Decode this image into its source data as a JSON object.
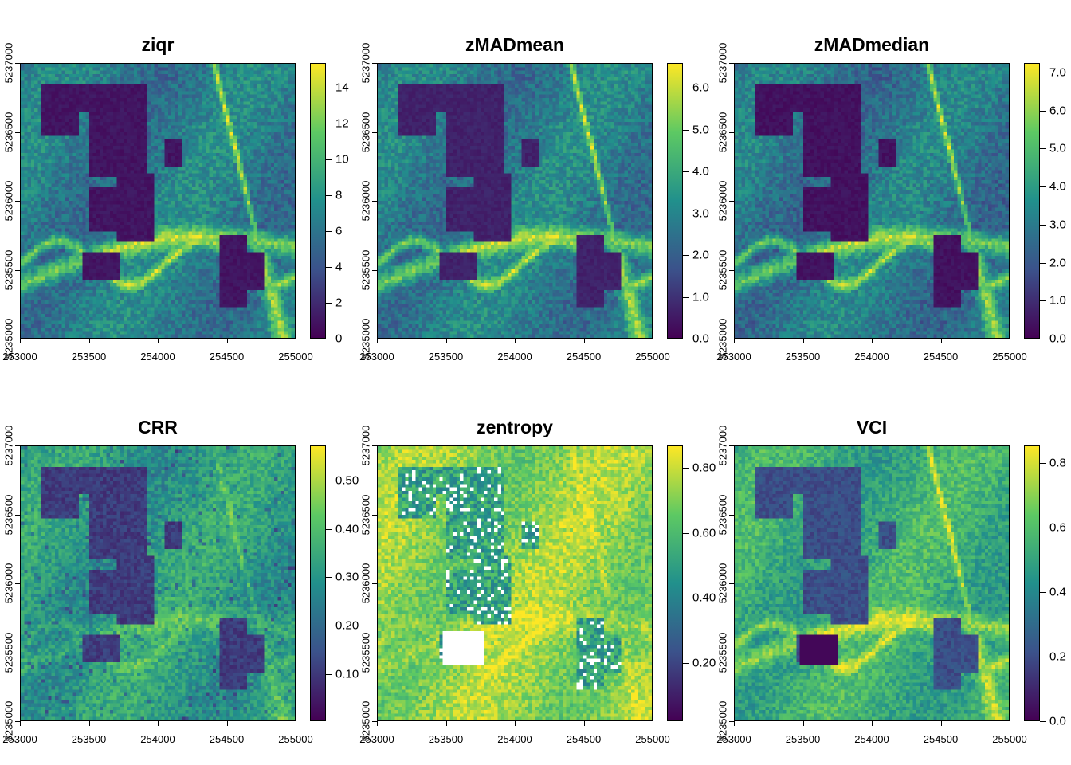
{
  "chart_data": {
    "type": "heatmap",
    "layout": "2x3 grid of raster maps with viridis color legends",
    "x_ticks": [
      "253000",
      "253500",
      "254000",
      "254500",
      "255000"
    ],
    "x_range": [
      253000,
      255000
    ],
    "y_ticks": [
      "5235000",
      "5235500",
      "5236000",
      "5236500",
      "5237000"
    ],
    "y_range": [
      5235000,
      5237000
    ],
    "colormap": [
      "#440154",
      "#3b528b",
      "#21908c",
      "#5dc963",
      "#fde725"
    ],
    "na_color": "#ffffff",
    "panels": [
      {
        "title": "ziqr",
        "range": [
          0,
          15.4
        ],
        "ticks": [
          0,
          2,
          4,
          6,
          8,
          10,
          12,
          14
        ],
        "tick_labels": [
          "0",
          "2",
          "4",
          "6",
          "8",
          "10",
          "12",
          "14"
        ],
        "base": 0.42,
        "dark": 0.03,
        "mode": "normal"
      },
      {
        "title": "zMADmean",
        "range": [
          0,
          6.6
        ],
        "ticks": [
          0,
          1,
          2,
          3,
          4,
          5,
          6
        ],
        "tick_labels": [
          "0.0",
          "1.0",
          "2.0",
          "3.0",
          "4.0",
          "5.0",
          "6.0"
        ],
        "base": 0.42,
        "dark": 0.07,
        "mode": "normal"
      },
      {
        "title": "zMADmedian",
        "range": [
          0,
          7.25
        ],
        "ticks": [
          0,
          1,
          2,
          3,
          4,
          5,
          6,
          7
        ],
        "tick_labels": [
          "0.0",
          "1.0",
          "2.0",
          "3.0",
          "4.0",
          "5.0",
          "6.0",
          "7.0"
        ],
        "base": 0.4,
        "dark": 0.02,
        "mode": "normal"
      },
      {
        "title": "CRR",
        "range": [
          0.003,
          0.572
        ],
        "ticks": [
          0.1,
          0.2,
          0.3,
          0.4,
          0.5
        ],
        "tick_labels": [
          "0.10",
          "0.20",
          "0.30",
          "0.40",
          "0.50"
        ],
        "base": 0.55,
        "dark": 0.12,
        "mode": "crr"
      },
      {
        "title": "zentropy",
        "range": [
          0.02,
          0.87
        ],
        "ticks": [
          0.2,
          0.4,
          0.6,
          0.8
        ],
        "tick_labels": [
          "0.20",
          "0.40",
          "0.60",
          "0.80"
        ],
        "base": 0.82,
        "dark": 0.4,
        "mode": "entropy"
      },
      {
        "title": "VCI",
        "range": [
          0,
          0.855
        ],
        "ticks": [
          0,
          0.2,
          0.4,
          0.6,
          0.8
        ],
        "tick_labels": [
          "0.0",
          "0.2",
          "0.4",
          "0.6",
          "0.8"
        ],
        "base": 0.62,
        "dark": 0.18,
        "mode": "vci"
      }
    ]
  }
}
